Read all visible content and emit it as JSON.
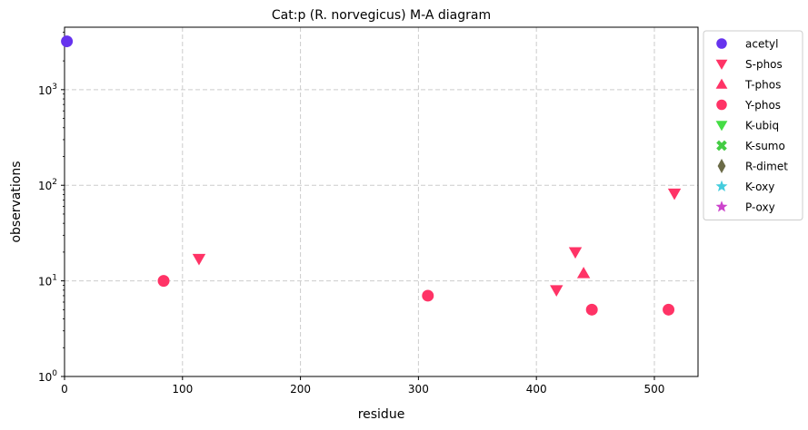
{
  "chart_data": {
    "type": "scatter",
    "title": "Cat:p (R. norvegicus) M-A diagram",
    "xlabel": "residue",
    "ylabel": "observations",
    "xlim": [
      0,
      537
    ],
    "ylim": [
      1,
      4500
    ],
    "yscale": "log",
    "x_ticks": [
      0,
      100,
      200,
      300,
      400,
      500
    ],
    "x_tick_labels": [
      "0",
      "100",
      "200",
      "300",
      "400",
      "500"
    ],
    "y_ticks": [
      1,
      10,
      100,
      1000
    ],
    "y_tick_labels": [
      "10",
      "10",
      "10",
      "10"
    ],
    "y_tick_exponents": [
      "0",
      "1",
      "2",
      "3"
    ],
    "grid": true,
    "legend_position": "outside-right",
    "series": [
      {
        "name": "acetyl",
        "marker": "circle",
        "color": "#6633ee",
        "points": [
          [
            2,
            3200
          ]
        ]
      },
      {
        "name": "S-phos",
        "marker": "triangle-down",
        "color": "#ff3366",
        "points": [
          [
            114,
            17
          ],
          [
            417,
            8
          ],
          [
            433,
            20
          ],
          [
            517,
            82
          ]
        ]
      },
      {
        "name": "T-phos",
        "marker": "triangle-up",
        "color": "#ff3366",
        "points": [
          [
            440,
            12
          ]
        ]
      },
      {
        "name": "Y-phos",
        "marker": "circle",
        "color": "#ff3366",
        "points": [
          [
            84,
            10
          ],
          [
            308,
            7
          ],
          [
            447,
            5
          ],
          [
            512,
            5
          ]
        ]
      },
      {
        "name": "K-ubiq",
        "marker": "triangle-down",
        "color": "#44dd44",
        "points": []
      },
      {
        "name": "K-sumo",
        "marker": "x",
        "color": "#44cc44",
        "points": []
      },
      {
        "name": "R-dimet",
        "marker": "diamond",
        "color": "#6b6b47",
        "points": []
      },
      {
        "name": "K-oxy",
        "marker": "star",
        "color": "#44ccdd",
        "points": []
      },
      {
        "name": "P-oxy",
        "marker": "star",
        "color": "#cc44cc",
        "points": []
      }
    ]
  }
}
